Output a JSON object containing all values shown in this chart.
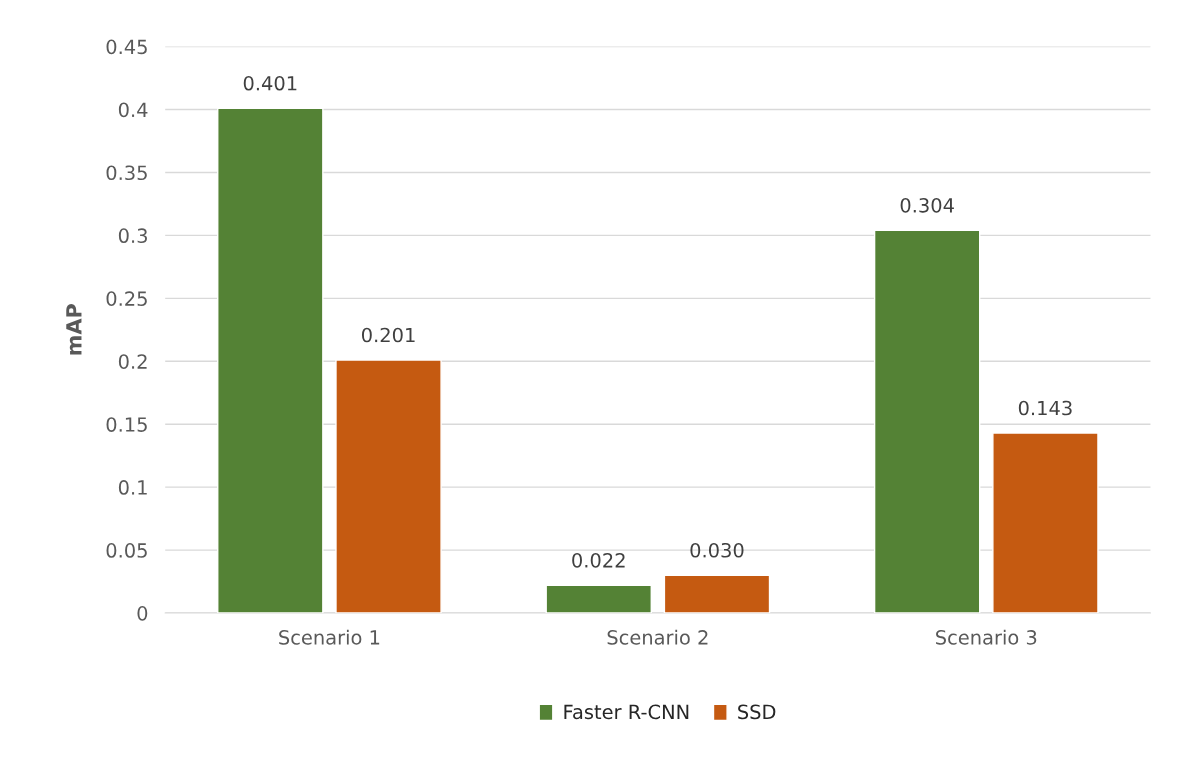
{
  "chart_data": {
    "type": "bar",
    "ylabel": "mAP",
    "categories": [
      "Scenario 1",
      "Scenario 2",
      "Scenario 3"
    ],
    "series": [
      {
        "name": "Faster R-CNN",
        "color": "#548235",
        "values": [
          0.401,
          0.022,
          0.304
        ],
        "value_labels": [
          "0.401",
          "0.022",
          "0.304"
        ]
      },
      {
        "name": "SSD",
        "color": "#c55a11",
        "values": [
          0.201,
          0.03,
          0.143
        ],
        "value_labels": [
          "0.201",
          "0.030",
          "0.143"
        ]
      }
    ],
    "ylim": [
      0,
      0.45
    ],
    "yticks": [
      0,
      0.05,
      0.1,
      0.15,
      0.2,
      0.25,
      0.3,
      0.35,
      0.4,
      0.45
    ],
    "grid": "y",
    "legend": "bottom"
  }
}
